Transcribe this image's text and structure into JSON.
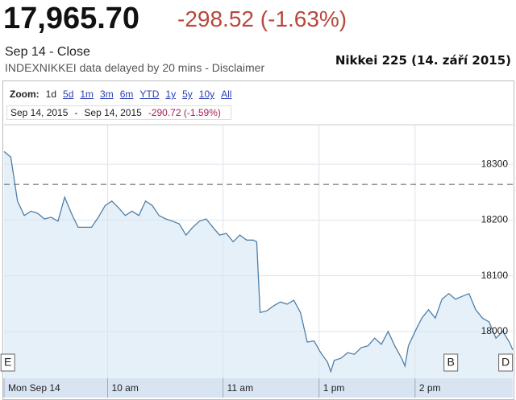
{
  "header": {
    "price": "17,965.70",
    "change": "-298.52 (-1.63%)",
    "date": "Sep 14 - Close",
    "source": "INDEXNIKKEI data delayed by 20 mins - Disclaimer",
    "caption": "Nikkei 225 (14. září 2015)"
  },
  "zoom": {
    "label": "Zoom:",
    "options": [
      "1d",
      "5d",
      "1m",
      "3m",
      "6m",
      "YTD",
      "1y",
      "5y",
      "10y",
      "All"
    ]
  },
  "range": {
    "from": "Sep 14, 2015",
    "separator": "-",
    "to": "Sep 14, 2015",
    "change": "-290.72 (-1.59%)"
  },
  "chart_data": {
    "type": "area",
    "xlim": [
      0,
      302
    ],
    "ylim": [
      17916,
      18371
    ],
    "yticks": [
      18000,
      18100,
      18200,
      18300
    ],
    "xticks": [
      {
        "value": 0,
        "label": "Mon Sep 14"
      },
      {
        "value": 61.5,
        "label": "10 am"
      },
      {
        "value": 130,
        "label": "11 am"
      },
      {
        "value": 187,
        "label": "1 pm"
      },
      {
        "value": 244,
        "label": "2 pm"
      }
    ],
    "reference_line": 18264,
    "grid": true,
    "series": [
      {
        "color": "#4f7fa8",
        "x": [
          0,
          4,
          8,
          12,
          16,
          20,
          24,
          28,
          32,
          36,
          40,
          44,
          48,
          52,
          56,
          60,
          64,
          68,
          72,
          76,
          80,
          84,
          88,
          92,
          96,
          100,
          104,
          108,
          112,
          116,
          120,
          124,
          128,
          132,
          136,
          140,
          144,
          148,
          150,
          152,
          156,
          160,
          164,
          168,
          172,
          176,
          180,
          184,
          188,
          192,
          194,
          196,
          200,
          204,
          208,
          212,
          216,
          220,
          224,
          228,
          232,
          236,
          238,
          240,
          244,
          248,
          252,
          256,
          260,
          264,
          268,
          272,
          276,
          280,
          284,
          288,
          292,
          296,
          300,
          302
        ],
        "values": [
          18323,
          18313,
          18234,
          18208,
          18216,
          18212,
          18202,
          18205,
          18198,
          18241,
          18212,
          18187,
          18187,
          18187,
          18205,
          18226,
          18234,
          18222,
          18208,
          18216,
          18208,
          18234,
          18226,
          18208,
          18202,
          18198,
          18193,
          18173,
          18187,
          18198,
          18202,
          18187,
          18173,
          18176,
          18161,
          18173,
          18164,
          18164,
          18161,
          18034,
          18037,
          18046,
          18053,
          18049,
          18056,
          18034,
          17981,
          17983,
          17962,
          17945,
          17928,
          17948,
          17952,
          17962,
          17959,
          17971,
          17974,
          17988,
          17977,
          18000,
          17974,
          17952,
          17938,
          17974,
          18000,
          18024,
          18039,
          18024,
          18058,
          18068,
          18058,
          18063,
          18068,
          18039,
          18024,
          18017,
          17988,
          18000,
          17981,
          17967
        ]
      }
    ],
    "events": [
      {
        "label": "E",
        "x": 2
      },
      {
        "label": "B",
        "x": 265
      },
      {
        "label": "D",
        "x": 297.5
      }
    ]
  }
}
